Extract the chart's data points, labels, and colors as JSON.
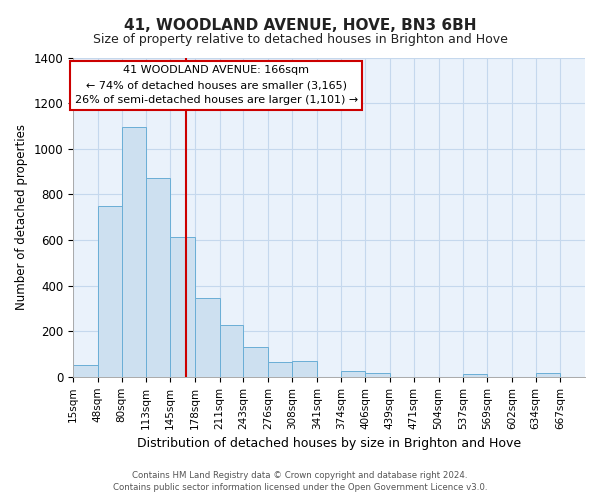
{
  "title": "41, WOODLAND AVENUE, HOVE, BN3 6BH",
  "subtitle": "Size of property relative to detached houses in Brighton and Hove",
  "xlabel": "Distribution of detached houses by size in Brighton and Hove",
  "ylabel": "Number of detached properties",
  "bar_edges": [
    15,
    48,
    80,
    113,
    145,
    178,
    211,
    243,
    276,
    308,
    341,
    374,
    406,
    439,
    471,
    504,
    537,
    569,
    602,
    634,
    667
  ],
  "bar_heights": [
    50,
    750,
    1095,
    870,
    615,
    345,
    228,
    130,
    65,
    70,
    0,
    25,
    18,
    0,
    0,
    0,
    12,
    0,
    0,
    15
  ],
  "bar_color": "#cde0f0",
  "bar_edgecolor": "#6aaed6",
  "property_line_x": 166,
  "property_line_color": "#cc0000",
  "annotation_title": "41 WOODLAND AVENUE: 166sqm",
  "annotation_line1": "← 74% of detached houses are smaller (3,165)",
  "annotation_line2": "26% of semi-detached houses are larger (1,101) →",
  "annotation_box_color": "#ffffff",
  "annotation_box_edgecolor": "#cc0000",
  "ylim": [
    0,
    1400
  ],
  "yticks": [
    0,
    200,
    400,
    600,
    800,
    1000,
    1200,
    1400
  ],
  "tick_labels": [
    "15sqm",
    "48sqm",
    "80sqm",
    "113sqm",
    "145sqm",
    "178sqm",
    "211sqm",
    "243sqm",
    "276sqm",
    "308sqm",
    "341sqm",
    "374sqm",
    "406sqm",
    "439sqm",
    "471sqm",
    "504sqm",
    "537sqm",
    "569sqm",
    "602sqm",
    "634sqm",
    "667sqm"
  ],
  "footnote1": "Contains HM Land Registry data © Crown copyright and database right 2024.",
  "footnote2": "Contains public sector information licensed under the Open Government Licence v3.0.",
  "background_color": "#ffffff",
  "plot_bg_color": "#eaf2fb",
  "grid_color": "#c5d8ed"
}
